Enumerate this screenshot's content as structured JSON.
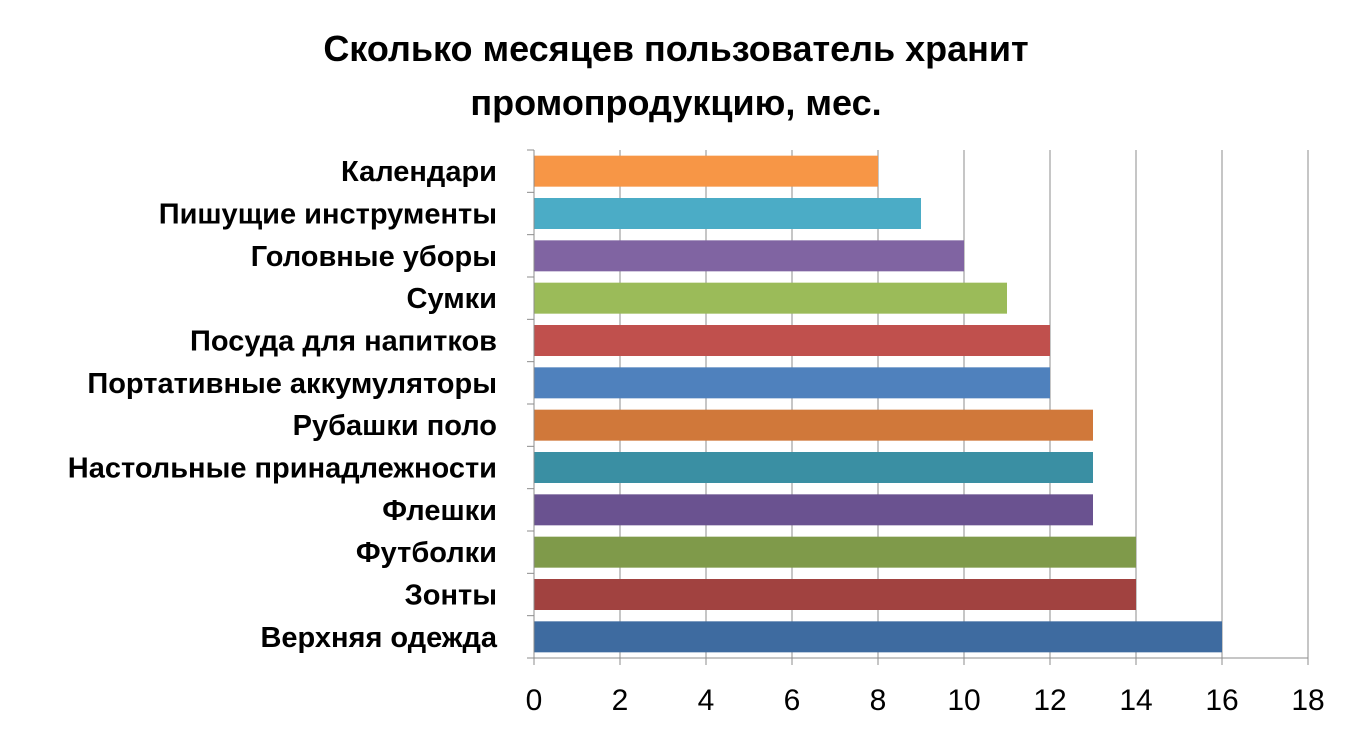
{
  "chart_data": {
    "type": "bar",
    "orientation": "horizontal",
    "title": "Сколько месяцев пользователь хранит промопродукцию, мес.",
    "title_lines": [
      "Сколько месяцев пользователь хранит",
      "промопродукцию, мес."
    ],
    "categories": [
      "Календари",
      "Пишущие инструменты",
      "Головные уборы",
      "Сумки",
      "Посуда для напитков",
      "Портативные аккумуляторы",
      "Рубашки поло",
      "Настольные принадлежности",
      "Флешки",
      "Футболки",
      "Зонты",
      "Верхняя одежда"
    ],
    "values": [
      8,
      9,
      10,
      11,
      12,
      12,
      13,
      13,
      13,
      14,
      14,
      16
    ],
    "colors": [
      "#F79646",
      "#4BACC6",
      "#8064A2",
      "#9BBB59",
      "#C0504D",
      "#4F81BD",
      "#D0783A",
      "#3A8FA3",
      "#6A5290",
      "#7F9A4A",
      "#A14240",
      "#3E6BA0"
    ],
    "xlim": [
      0,
      18
    ],
    "xticks": [
      "0",
      "2",
      "4",
      "6",
      "8",
      "10",
      "12",
      "14",
      "16",
      "18"
    ],
    "grid": true,
    "legend": "none",
    "xlabel": "",
    "ylabel": ""
  }
}
